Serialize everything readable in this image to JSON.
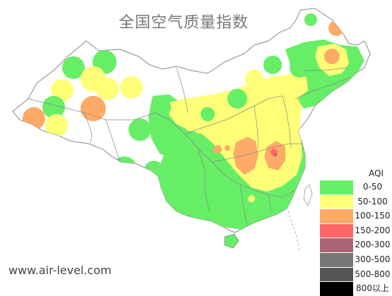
{
  "title": "全国空气质量指数",
  "watermark": "www.air-level.com",
  "legend": {
    "title": "AQI",
    "items": [
      {
        "label": "0-50",
        "color": "#66ee66"
      },
      {
        "label": "50-100",
        "color": "#ffff77"
      },
      {
        "label": "100-150",
        "color": "#ffaa66"
      },
      {
        "label": "150-200",
        "color": "#ff6666"
      },
      {
        "label": "200-300",
        "color": "#aa6677"
      },
      {
        "label": "300-500",
        "color": "#777777"
      },
      {
        "label": "500-800",
        "color": "#555555"
      },
      {
        "label": "800以上",
        "color": "#000000"
      }
    ]
  },
  "colors": {
    "good": "#66ee66",
    "moderate": "#ffff77",
    "sensitive": "#ffaa66",
    "unhealthy": "#ff6666",
    "very_unhealthy": "#aa6677",
    "border": "#777777"
  }
}
